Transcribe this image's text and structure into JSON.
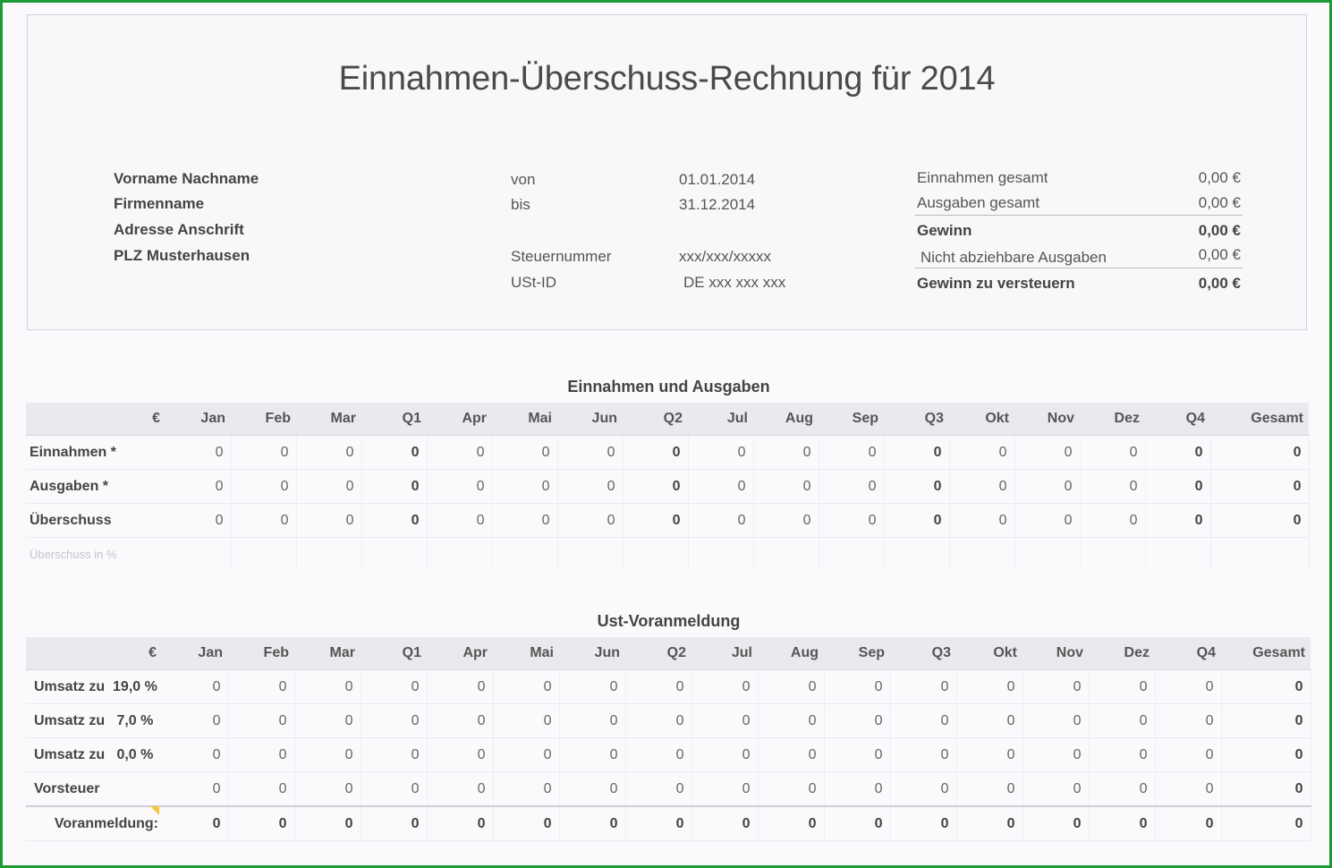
{
  "title": "Einnahmen-Überschuss-Rechnung für 2014",
  "address": [
    "Vorname Nachname",
    "Firmenname",
    "Adresse Anschrift",
    "PLZ Musterhausen"
  ],
  "period": {
    "von_label": "von",
    "von_value": "01.01.2014",
    "bis_label": "bis",
    "bis_value": "31.12.2014"
  },
  "tax": {
    "steuernummer_label": "Steuernummer",
    "steuernummer_value": "xxx/xxx/xxxxx",
    "ustid_label": "USt-ID",
    "ustid_value": "DE xxx xxx xxx"
  },
  "summary": {
    "einnahmen_label": "Einnahmen gesamt",
    "einnahmen_value": "0,00 €",
    "ausgaben_label": "Ausgaben gesamt",
    "ausgaben_value": "0,00 €",
    "gewinn_label": "Gewinn",
    "gewinn_value": "0,00 €",
    "nicht_abz_label": "Nicht abziehbare Ausgaben",
    "nicht_abz_value": "0,00 €",
    "versteuern_label": "Gewinn zu versteuern",
    "versteuern_value": "0,00 €"
  },
  "table1": {
    "title": "Einnahmen und Ausgaben",
    "currency": "€",
    "columns": [
      "Jan",
      "Feb",
      "Mar",
      "Q1",
      "Apr",
      "Mai",
      "Jun",
      "Q2",
      "Jul",
      "Aug",
      "Sep",
      "Q3",
      "Okt",
      "Nov",
      "Dez",
      "Q4",
      "Gesamt"
    ],
    "rows": [
      {
        "label": "Einnahmen *",
        "values": [
          "0",
          "0",
          "0",
          "0",
          "0",
          "0",
          "0",
          "0",
          "0",
          "0",
          "0",
          "0",
          "0",
          "0",
          "0",
          "0",
          "0"
        ]
      },
      {
        "label": "Ausgaben *",
        "values": [
          "0",
          "0",
          "0",
          "0",
          "0",
          "0",
          "0",
          "0",
          "0",
          "0",
          "0",
          "0",
          "0",
          "0",
          "0",
          "0",
          "0"
        ]
      },
      {
        "label": "Überschuss",
        "values": [
          "0",
          "0",
          "0",
          "0",
          "0",
          "0",
          "0",
          "0",
          "0",
          "0",
          "0",
          "0",
          "0",
          "0",
          "0",
          "0",
          "0"
        ]
      }
    ],
    "pct_label": "Überschuss in %"
  },
  "table2": {
    "title": "Ust-Voranmeldung",
    "currency": "€",
    "columns": [
      "Jan",
      "Feb",
      "Mar",
      "Q1",
      "Apr",
      "Mai",
      "Jun",
      "Q2",
      "Jul",
      "Aug",
      "Sep",
      "Q3",
      "Okt",
      "Nov",
      "Dez",
      "Q4",
      "Gesamt"
    ],
    "rows": [
      {
        "label": "Umsatz zu  19,0 %",
        "values": [
          "0",
          "0",
          "0",
          "0",
          "0",
          "0",
          "0",
          "0",
          "0",
          "0",
          "0",
          "0",
          "0",
          "0",
          "0",
          "0",
          "0"
        ]
      },
      {
        "label": "Umsatz zu   7,0 %",
        "values": [
          "0",
          "0",
          "0",
          "0",
          "0",
          "0",
          "0",
          "0",
          "0",
          "0",
          "0",
          "0",
          "0",
          "0",
          "0",
          "0",
          "0"
        ]
      },
      {
        "label": "Umsatz zu   0,0 %",
        "values": [
          "0",
          "0",
          "0",
          "0",
          "0",
          "0",
          "0",
          "0",
          "0",
          "0",
          "0",
          "0",
          "0",
          "0",
          "0",
          "0",
          "0"
        ]
      },
      {
        "label": "Vorsteuer",
        "values": [
          "0",
          "0",
          "0",
          "0",
          "0",
          "0",
          "0",
          "0",
          "0",
          "0",
          "0",
          "0",
          "0",
          "0",
          "0",
          "0",
          "0"
        ]
      }
    ],
    "sum_row": {
      "label": "Voranmeldung:",
      "values": [
        "0",
        "0",
        "0",
        "0",
        "0",
        "0",
        "0",
        "0",
        "0",
        "0",
        "0",
        "0",
        "0",
        "0",
        "0",
        "0",
        "0"
      ]
    }
  }
}
